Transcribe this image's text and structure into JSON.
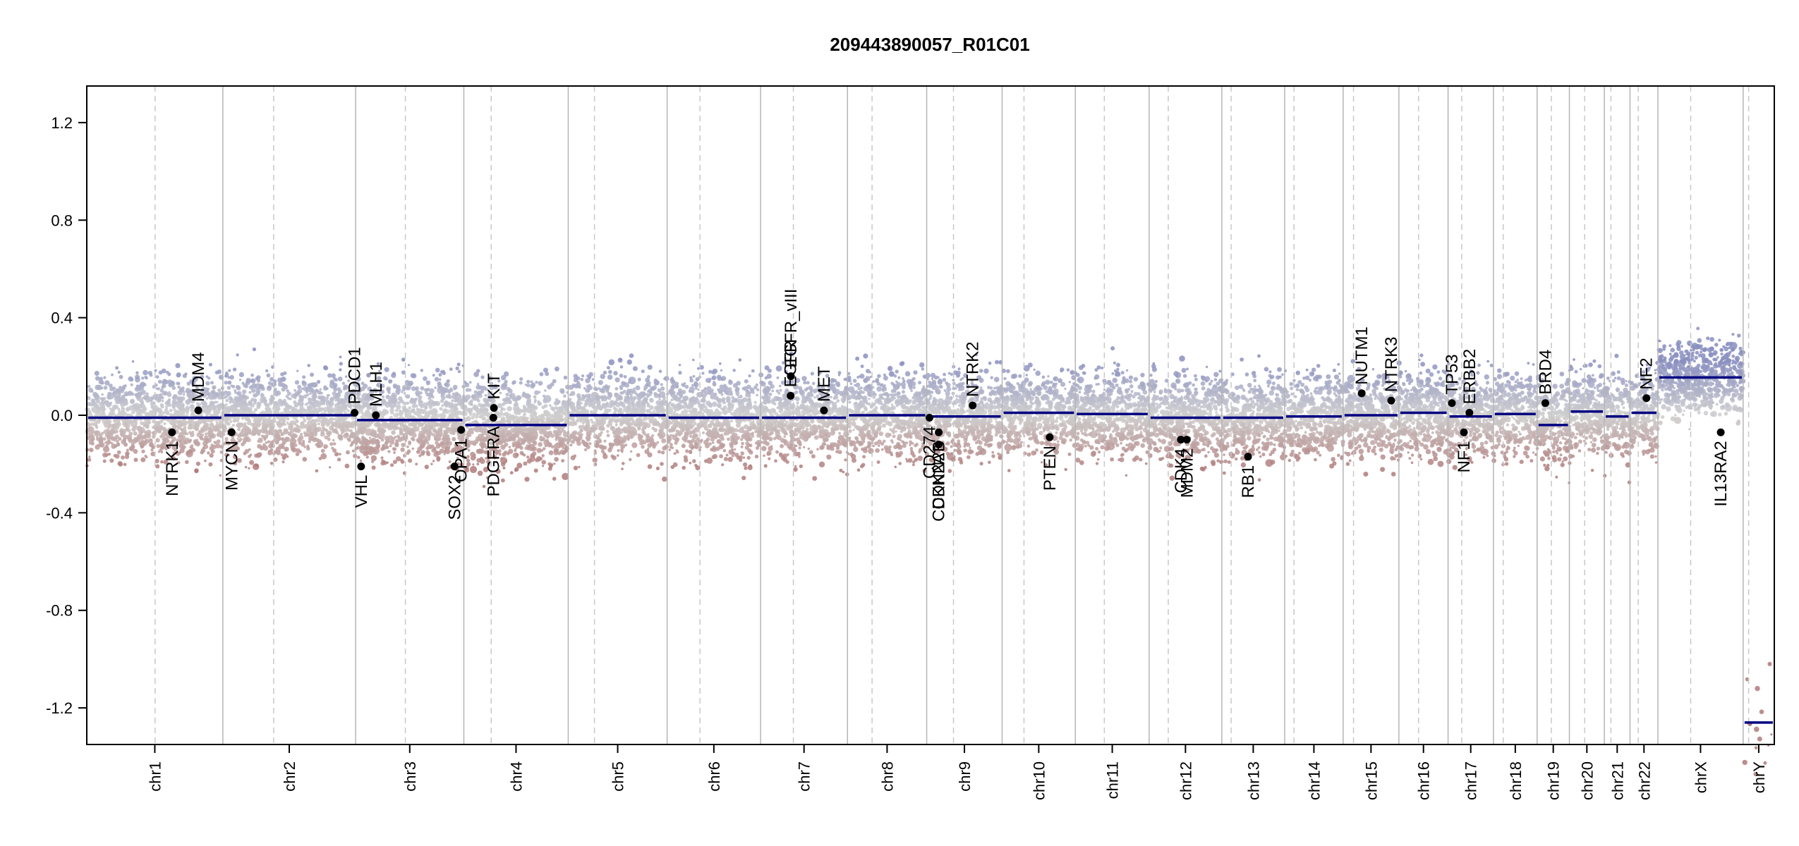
{
  "chart_data": {
    "type": "scatter",
    "title": "209443890057_R01C01",
    "xlabel": "",
    "ylabel": "",
    "ylim": [
      -1.35,
      1.35
    ],
    "yticks": [
      -1.2,
      -0.8,
      -0.4,
      0.0,
      0.4,
      0.8,
      1.2
    ],
    "ytick_labels": [
      "-1.2",
      "-0.8",
      "-0.4",
      "0.0",
      "0.4",
      "0.8",
      "1.2"
    ],
    "grid": false,
    "legend": "none",
    "colors": {
      "gain": "#8a8fc0",
      "loss": "#b07a7a",
      "segment": "#000080",
      "neutral": "#cfcfcf"
    },
    "chromosomes": [
      {
        "name": "chr1",
        "length": 249,
        "centromere": 125,
        "segments": [
          [
            0,
            249,
            -0.01
          ]
        ]
      },
      {
        "name": "chr2",
        "length": 243,
        "centromere": 93,
        "segments": [
          [
            0,
            243,
            0.0
          ]
        ]
      },
      {
        "name": "chr3",
        "length": 198,
        "centromere": 91,
        "segments": [
          [
            0,
            198,
            -0.02
          ]
        ]
      },
      {
        "name": "chr4",
        "length": 191,
        "centromere": 50,
        "segments": [
          [
            0,
            191,
            -0.04
          ]
        ]
      },
      {
        "name": "chr5",
        "length": 181,
        "centromere": 48,
        "segments": [
          [
            0,
            181,
            0.0
          ]
        ]
      },
      {
        "name": "chr6",
        "length": 171,
        "centromere": 60,
        "segments": [
          [
            0,
            171,
            -0.01
          ]
        ]
      },
      {
        "name": "chr7",
        "length": 159,
        "centromere": 60,
        "segments": [
          [
            0,
            159,
            -0.01
          ]
        ]
      },
      {
        "name": "chr8",
        "length": 145,
        "centromere": 45,
        "segments": [
          [
            0,
            145,
            0.0
          ]
        ]
      },
      {
        "name": "chr9",
        "length": 138,
        "centromere": 49,
        "segments": [
          [
            0,
            138,
            -0.005
          ]
        ]
      },
      {
        "name": "chr10",
        "length": 134,
        "centromere": 40,
        "segments": [
          [
            0,
            134,
            0.01
          ]
        ]
      },
      {
        "name": "chr11",
        "length": 135,
        "centromere": 53,
        "segments": [
          [
            0,
            135,
            0.005
          ]
        ]
      },
      {
        "name": "chr12",
        "length": 133,
        "centromere": 35,
        "segments": [
          [
            0,
            133,
            -0.01
          ]
        ]
      },
      {
        "name": "chr13",
        "length": 115,
        "centromere": 17,
        "segments": [
          [
            0,
            115,
            -0.01
          ]
        ]
      },
      {
        "name": "chr14",
        "length": 107,
        "centromere": 17,
        "segments": [
          [
            0,
            107,
            -0.005
          ]
        ]
      },
      {
        "name": "chr15",
        "length": 102,
        "centromere": 19,
        "segments": [
          [
            0,
            102,
            0.0
          ]
        ]
      },
      {
        "name": "chr16",
        "length": 90,
        "centromere": 36,
        "segments": [
          [
            0,
            90,
            0.01
          ]
        ]
      },
      {
        "name": "chr17",
        "length": 83,
        "centromere": 25,
        "segments": [
          [
            0,
            83,
            -0.005
          ]
        ]
      },
      {
        "name": "chr18",
        "length": 80,
        "centromere": 18,
        "segments": [
          [
            0,
            80,
            0.005
          ]
        ]
      },
      {
        "name": "chr19",
        "length": 59,
        "centromere": 26,
        "segments": [
          [
            0,
            59,
            -0.04
          ]
        ]
      },
      {
        "name": "chr20",
        "length": 64,
        "centromere": 28,
        "segments": [
          [
            0,
            64,
            0.015
          ]
        ]
      },
      {
        "name": "chr21",
        "length": 47,
        "centromere": 12,
        "segments": [
          [
            0,
            47,
            -0.005
          ]
        ]
      },
      {
        "name": "chr22",
        "length": 51,
        "centromere": 15,
        "segments": [
          [
            0,
            51,
            0.01
          ]
        ]
      },
      {
        "name": "chrX",
        "length": 156,
        "centromere": 60,
        "segments": [
          [
            0,
            156,
            0.155
          ]
        ]
      },
      {
        "name": "chrY",
        "length": 57,
        "centromere": 10,
        "segments": [
          [
            0,
            57,
            -1.26
          ]
        ]
      }
    ],
    "genes": [
      {
        "name": "NTRK1",
        "chr": "chr1",
        "pos": 156,
        "value": -0.07
      },
      {
        "name": "MDM4",
        "chr": "chr1",
        "pos": 204,
        "value": 0.02
      },
      {
        "name": "MYCN",
        "chr": "chr2",
        "pos": 16,
        "value": -0.07
      },
      {
        "name": "PDCD1",
        "chr": "chr2",
        "pos": 241,
        "value": 0.01
      },
      {
        "name": "VHL",
        "chr": "chr3",
        "pos": 10,
        "value": -0.21
      },
      {
        "name": "MLH1",
        "chr": "chr3",
        "pos": 37,
        "value": 0.0
      },
      {
        "name": "SOX2",
        "chr": "chr3",
        "pos": 181,
        "value": -0.21
      },
      {
        "name": "OPA1",
        "chr": "chr3",
        "pos": 193,
        "value": -0.06
      },
      {
        "name": "PDGFRA",
        "chr": "chr4",
        "pos": 54,
        "value": -0.01
      },
      {
        "name": "KIT",
        "chr": "chr4",
        "pos": 55,
        "value": 0.03
      },
      {
        "name": "EGFR",
        "chr": "chr7",
        "pos": 55,
        "value": 0.08
      },
      {
        "name": "EGFR_vIII",
        "chr": "chr7",
        "pos": 55.3,
        "value": 0.16
      },
      {
        "name": "MET",
        "chr": "chr7",
        "pos": 116,
        "value": 0.02
      },
      {
        "name": "CD274",
        "chr": "chr9",
        "pos": 5,
        "value": -0.01
      },
      {
        "name": "CDKN2A",
        "chr": "chr9",
        "pos": 21.9,
        "value": -0.12
      },
      {
        "name": "CDKN2B",
        "chr": "chr9",
        "pos": 22.0,
        "value": -0.07
      },
      {
        "name": "NTRK2",
        "chr": "chr9",
        "pos": 84,
        "value": 0.04
      },
      {
        "name": "PTEN",
        "chr": "chr10",
        "pos": 87,
        "value": -0.09
      },
      {
        "name": "CDK4",
        "chr": "chr12",
        "pos": 58,
        "value": -0.1
      },
      {
        "name": "MDM2",
        "chr": "chr12",
        "pos": 69,
        "value": -0.1
      },
      {
        "name": "RB1",
        "chr": "chr13",
        "pos": 48,
        "value": -0.17
      },
      {
        "name": "NUTM1",
        "chr": "chr15",
        "pos": 34,
        "value": 0.09
      },
      {
        "name": "NTRK3",
        "chr": "chr15",
        "pos": 88,
        "value": 0.06
      },
      {
        "name": "TP53",
        "chr": "chr17",
        "pos": 7,
        "value": 0.05
      },
      {
        "name": "NF1",
        "chr": "chr17",
        "pos": 29,
        "value": -0.07
      },
      {
        "name": "ERBB2",
        "chr": "chr17",
        "pos": 39,
        "value": 0.01
      },
      {
        "name": "BRD4",
        "chr": "chr19",
        "pos": 15,
        "value": 0.05
      },
      {
        "name": "NF2",
        "chr": "chr22",
        "pos": 30,
        "value": 0.07
      },
      {
        "name": "IL13RA2",
        "chr": "chrX",
        "pos": 115,
        "value": -0.07
      }
    ]
  }
}
